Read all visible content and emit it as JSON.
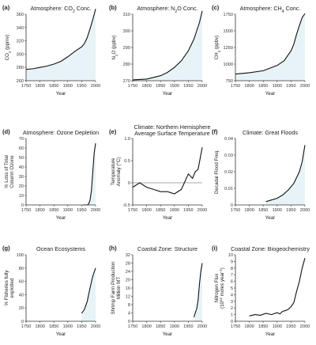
{
  "chart_data": [
    {
      "type": "area",
      "letter": "(a)",
      "title": [
        "Atmosphere: CO",
        "2",
        " Conc."
      ],
      "ylabel": [
        "CO",
        "2",
        " (ppmv)"
      ],
      "xlabel": "Year",
      "xlim": [
        1750,
        2000
      ],
      "ylim": [
        260,
        360
      ],
      "yticks": [
        "260",
        "280",
        "300",
        "320",
        "340",
        "360"
      ],
      "xticks": [
        "1750",
        "1800",
        "1850",
        "1900",
        "1950",
        "2000"
      ],
      "x": [
        1750,
        1775,
        1800,
        1825,
        1850,
        1875,
        1900,
        1925,
        1950,
        1960,
        1970,
        1980,
        1990,
        2000
      ],
      "y": [
        277,
        278,
        280,
        282,
        285,
        289,
        296,
        304,
        311,
        316,
        325,
        338,
        352,
        368
      ]
    },
    {
      "type": "area",
      "letter": "(b)",
      "title": [
        "Atmosphere: N",
        "2",
        "O Conc."
      ],
      "ylabel": [
        "N",
        "2",
        "O (ppbv)"
      ],
      "xlabel": "Year",
      "xlim": [
        1750,
        2000
      ],
      "ylim": [
        270,
        310
      ],
      "yticks": [
        "270",
        "280",
        "290",
        "300",
        "310"
      ],
      "xticks": [
        "1750",
        "1800",
        "1850",
        "1900",
        "1950",
        "2000"
      ],
      "x": [
        1750,
        1800,
        1850,
        1875,
        1900,
        1925,
        1950,
        1970,
        1980,
        1990,
        2000
      ],
      "y": [
        270.5,
        271,
        273,
        275,
        278,
        282,
        288,
        295,
        300,
        305,
        312
      ]
    },
    {
      "type": "area",
      "letter": "(c)",
      "title": [
        "Atmosphere: CH",
        "4",
        " Conc."
      ],
      "ylabel": [
        "CH",
        "4",
        " (ppbv)"
      ],
      "xlabel": "Year",
      "xlim": [
        1750,
        2000
      ],
      "ylim": [
        750,
        1750
      ],
      "yticks": [
        "750",
        "1000",
        "1250",
        "1500",
        "1750"
      ],
      "xticks": [
        "1750",
        "1800",
        "1850",
        "1900",
        "1950",
        "2000"
      ],
      "x": [
        1750,
        1800,
        1850,
        1875,
        1900,
        1925,
        1950,
        1960,
        1970,
        1980,
        1990,
        2000
      ],
      "y": [
        850,
        870,
        900,
        940,
        980,
        1050,
        1200,
        1300,
        1450,
        1580,
        1700,
        1760
      ]
    },
    {
      "type": "area",
      "letter": "(d)",
      "title": [
        "Atmosphere: Ozone Depletion"
      ],
      "ylabel": [
        "% Loss of Total",
        "Column Ozone"
      ],
      "xlabel": "Year",
      "xlim": [
        1750,
        2000
      ],
      "ylim": [
        0,
        70
      ],
      "yticks": [
        "0",
        "10",
        "20",
        "30",
        "40",
        "50",
        "60",
        "70"
      ],
      "xticks": [
        "1750",
        "1800",
        "1850",
        "1900",
        "1950",
        "2000"
      ],
      "x": [
        1955,
        1965,
        1970,
        1975,
        1980,
        1985,
        1990,
        1995,
        2000
      ],
      "y": [
        0,
        0,
        0,
        1,
        5,
        15,
        35,
        55,
        65
      ]
    },
    {
      "type": "line",
      "letter": "(e)",
      "title": [
        "Climate: Northern Hemisphere",
        "Average Surface Temperature"
      ],
      "ylabel": [
        "Temperature",
        "Anomaly (°C)"
      ],
      "xlabel": "Year",
      "xlim": [
        1750,
        2000
      ],
      "ylim": [
        -0.5,
        1.0
      ],
      "yticks": [
        "-0.5",
        "0",
        "0.5",
        "1.0"
      ],
      "xticks": [
        "1750",
        "1800",
        "1850",
        "1900",
        "1950",
        "2000"
      ],
      "x": [
        1750,
        1775,
        1800,
        1825,
        1850,
        1875,
        1900,
        1925,
        1950,
        1965,
        1975,
        1985,
        2000
      ],
      "y": [
        -0.1,
        0.0,
        -0.1,
        -0.15,
        -0.2,
        -0.2,
        -0.25,
        -0.15,
        0.2,
        0.1,
        0.25,
        0.3,
        0.8
      ]
    },
    {
      "type": "area",
      "letter": "(f)",
      "title": [
        "Climate: Great Floods"
      ],
      "ylabel": [
        "Decadal Flood Freq."
      ],
      "xlabel": "Year",
      "xlim": [
        1750,
        2000
      ],
      "ylim": [
        0,
        0.04
      ],
      "yticks": [
        "0",
        "0.01",
        "0.02",
        "0.03",
        "0.04"
      ],
      "xticks": [
        "1750",
        "1800",
        "1850",
        "1900",
        "1950",
        "2000"
      ],
      "x": [
        1860,
        1880,
        1900,
        1920,
        1940,
        1960,
        1980,
        1990,
        2000
      ],
      "y": [
        0.002,
        0.003,
        0.004,
        0.006,
        0.009,
        0.013,
        0.02,
        0.026,
        0.036
      ]
    },
    {
      "type": "area",
      "letter": "(g)",
      "title": [
        "Ocean Ecosystems"
      ],
      "ylabel": [
        "% Fisheries fully",
        "exploited"
      ],
      "xlabel": "Year",
      "xlim": [
        1750,
        2000
      ],
      "ylim": [
        0,
        100
      ],
      "yticks": [
        "0",
        "20",
        "40",
        "60",
        "80",
        "100"
      ],
      "xticks": [
        "1750",
        "1800",
        "1850",
        "1900",
        "1950",
        "2000"
      ],
      "x": [
        1950,
        1960,
        1970,
        1980,
        1990,
        2000
      ],
      "y": [
        12,
        18,
        30,
        50,
        68,
        80
      ]
    },
    {
      "type": "area",
      "letter": "(h)",
      "title": [
        "Coastal Zone: Structure"
      ],
      "ylabel": [
        "Shrimp Farm Production",
        "Million MT"
      ],
      "xlabel": "Year",
      "xlim": [
        1750,
        2000
      ],
      "ylim": [
        0,
        32
      ],
      "yticks": [
        "0",
        "4",
        "8",
        "12",
        "16",
        "20",
        "24",
        "28",
        "32"
      ],
      "xticks": [
        "1750",
        "1800",
        "1850",
        "1900",
        "1950",
        "2000"
      ],
      "x": [
        1970,
        1975,
        1980,
        1985,
        1990,
        1995,
        2000
      ],
      "y": [
        2,
        4,
        6,
        10,
        18,
        24,
        28
      ]
    },
    {
      "type": "line",
      "letter": "(i)",
      "title": [
        "Coastal Zone: Biogeochemistry"
      ],
      "ylabel": [
        "Nitrogen Flux",
        "(10",
        "12",
        " moles year",
        "-1",
        ")"
      ],
      "xlabel": "Year",
      "xlim": [
        1750,
        2000
      ],
      "ylim": [
        0,
        10
      ],
      "yticks": [
        "0",
        "1",
        "2",
        "3",
        "4",
        "5",
        "6",
        "7",
        "8",
        "9",
        "10"
      ],
      "xticks": [
        "1750",
        "1800",
        "1850",
        "1900",
        "1950",
        "2000"
      ],
      "x": [
        1800,
        1820,
        1840,
        1860,
        1880,
        1900,
        1910,
        1920,
        1930,
        1940,
        1950,
        1960,
        1970,
        1980,
        1990,
        2000
      ],
      "y": [
        0.8,
        1.0,
        0.9,
        1.2,
        1.0,
        1.3,
        1.1,
        1.5,
        1.6,
        1.8,
        2.2,
        2.8,
        4.5,
        6.0,
        8.0,
        9.5
      ]
    }
  ]
}
